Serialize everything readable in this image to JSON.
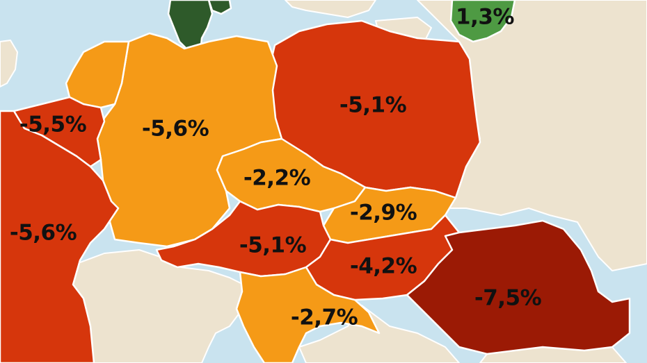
{
  "colors": {
    "sea": "#c9e3ef",
    "neutral_land": "#ede3cf",
    "growth_dark_green": "#2e5a2a",
    "growth_green": "#4e9a43",
    "decline_light": "#f59a17",
    "decline_mid": "#d6360c",
    "decline_dark": "#9b1a05"
  },
  "regions": [
    {
      "id": "lithuania",
      "label": "1,3%",
      "color": "#4e9a43"
    },
    {
      "id": "poland",
      "label": "-5,1%",
      "color": "#d6360c"
    },
    {
      "id": "germany",
      "label": "-5,6%",
      "color": "#f59a17"
    },
    {
      "id": "belgium",
      "label": "-5,5%",
      "color": "#d6360c"
    },
    {
      "id": "netherlands",
      "label": "",
      "color": "#f59a17"
    },
    {
      "id": "france",
      "label": "-5,6%",
      "color": "#d6360c"
    },
    {
      "id": "czechia",
      "label": "-2,2%",
      "color": "#f59a17"
    },
    {
      "id": "slovakia",
      "label": "-2,9%",
      "color": "#f59a17"
    },
    {
      "id": "austria",
      "label": "-5,1%",
      "color": "#d6360c"
    },
    {
      "id": "hungary",
      "label": "-4,2%",
      "color": "#d6360c"
    },
    {
      "id": "croatia",
      "label": "-2,7%",
      "color": "#f59a17"
    },
    {
      "id": "romania",
      "label": "-7,5%",
      "color": "#9b1a05"
    },
    {
      "id": "denmark",
      "label": "",
      "color": "#2e5a2a"
    }
  ]
}
